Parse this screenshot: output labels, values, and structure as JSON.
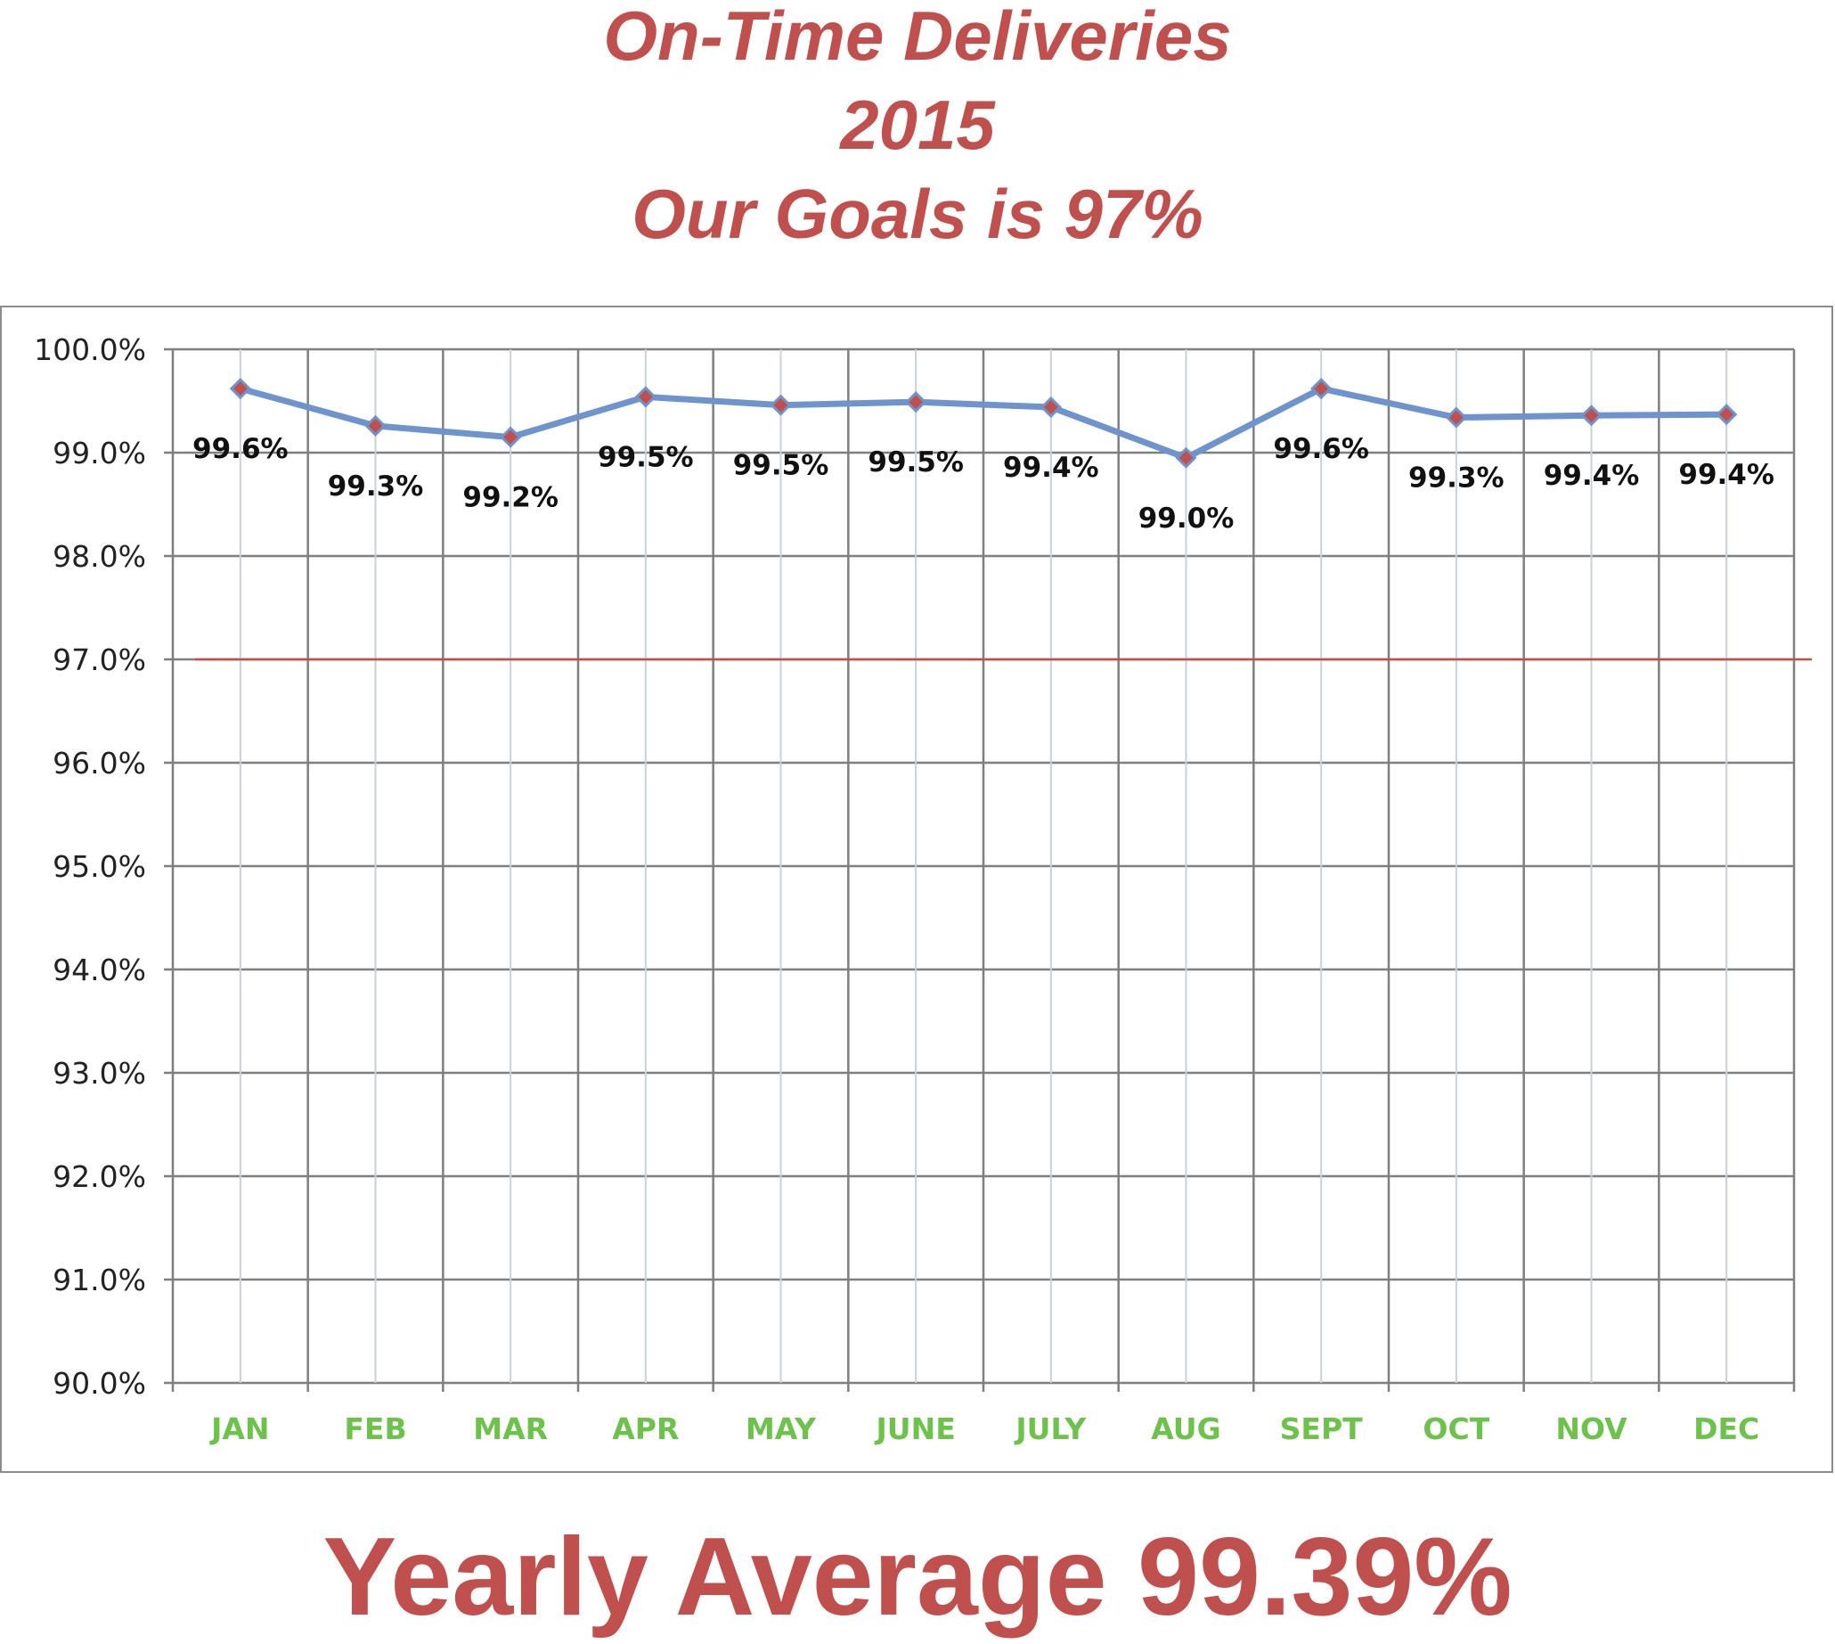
{
  "header": {
    "title": "On-Time Deliveries",
    "year": "2015",
    "goal_text": "Our Goals is 97%"
  },
  "footer": {
    "summary": "Yearly Average 99.39%"
  },
  "colors": {
    "title": "#c0504d",
    "series_line": "#6f93cc",
    "marker": "#c0504d",
    "goal_line": "#c0504d",
    "x_labels": "#6cc24a",
    "grid_h": "#7f7f7f",
    "grid_v_dark": "#7f7f7f",
    "grid_v_light": "#c9d1d9"
  },
  "chart_data": {
    "type": "line",
    "title": "On-Time Deliveries 2015",
    "categories": [
      "JAN",
      "FEB",
      "MAR",
      "APR",
      "MAY",
      "JUNE",
      "JULY",
      "AUG",
      "SEPT",
      "OCT",
      "NOV",
      "DEC"
    ],
    "series": [
      {
        "values": [
          99.62,
          99.26,
          99.15,
          99.54,
          99.46,
          99.49,
          99.44,
          98.95,
          99.62,
          99.34,
          99.36,
          99.37
        ],
        "data_labels": [
          "99.6%",
          "99.3%",
          "99.2%",
          "99.5%",
          "99.5%",
          "99.5%",
          "99.4%",
          "99.0%",
          "99.6%",
          "99.3%",
          "99.4%",
          "99.4%"
        ]
      }
    ],
    "goal_value": 97.0,
    "ylim": [
      90.0,
      100.0
    ],
    "y_ticks": [
      100.0,
      99.0,
      98.0,
      97.0,
      96.0,
      95.0,
      94.0,
      93.0,
      92.0,
      91.0,
      90.0
    ],
    "y_tick_labels": [
      "100.0%",
      "99.0%",
      "98.0%",
      "97.0%",
      "96.0%",
      "95.0%",
      "94.0%",
      "93.0%",
      "92.0%",
      "91.0%",
      "90.0%"
    ],
    "label_positions": [
      "below",
      "below",
      "below",
      "below",
      "below",
      "below",
      "below",
      "below",
      "below",
      "below",
      "below",
      "below"
    ],
    "grid": true,
    "legend": "none"
  }
}
